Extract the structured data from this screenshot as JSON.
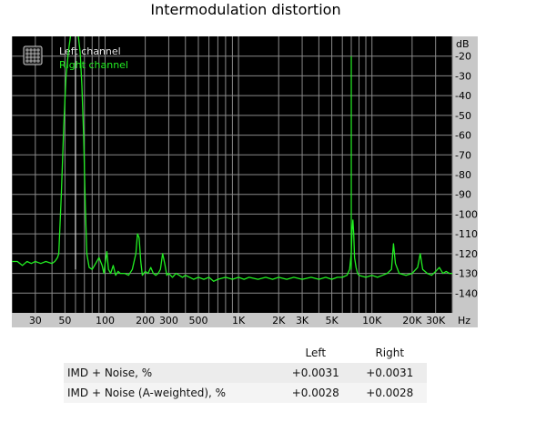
{
  "title": "Intermodulation distortion",
  "chart_data": {
    "type": "line",
    "x_scale": "log",
    "xlim": [
      20,
      40000
    ],
    "ylim": [
      -150,
      -10
    ],
    "y_unit": "dB",
    "x_unit": "Hz",
    "grid": true,
    "legend_position": "top-left",
    "x_ticks": [
      {
        "v": 30,
        "label": "30"
      },
      {
        "v": 50,
        "label": "50"
      },
      {
        "v": 100,
        "label": "100"
      },
      {
        "v": 200,
        "label": "200"
      },
      {
        "v": 300,
        "label": "300"
      },
      {
        "v": 500,
        "label": "500"
      },
      {
        "v": 1000,
        "label": "1K"
      },
      {
        "v": 2000,
        "label": "2K"
      },
      {
        "v": 3000,
        "label": "3K"
      },
      {
        "v": 5000,
        "label": "5K"
      },
      {
        "v": 10000,
        "label": "10K"
      },
      {
        "v": 20000,
        "label": "20K"
      },
      {
        "v": 30000,
        "label": "30K"
      }
    ],
    "y_ticks": [
      {
        "v": -20,
        "label": "-20"
      },
      {
        "v": -30,
        "label": "-30"
      },
      {
        "v": -40,
        "label": "-40"
      },
      {
        "v": -50,
        "label": "-50"
      },
      {
        "v": -60,
        "label": "-60"
      },
      {
        "v": -70,
        "label": "-70"
      },
      {
        "v": -80,
        "label": "-80"
      },
      {
        "v": -90,
        "label": "-90"
      },
      {
        "v": -100,
        "label": "-100"
      },
      {
        "v": -110,
        "label": "-110"
      },
      {
        "v": -120,
        "label": "-120"
      },
      {
        "v": -130,
        "label": "-130"
      },
      {
        "v": -140,
        "label": "-140"
      }
    ],
    "series": [
      {
        "name": "Left channel",
        "color": "#e6e6e6",
        "values": []
      },
      {
        "name": "Right channel",
        "color": "#22ee22",
        "values": [
          [
            20,
            -124
          ],
          [
            22,
            -124
          ],
          [
            24,
            -126
          ],
          [
            26,
            -124
          ],
          [
            28,
            -125
          ],
          [
            30,
            -124
          ],
          [
            33,
            -125
          ],
          [
            36,
            -124
          ],
          [
            40,
            -125
          ],
          [
            42,
            -124
          ],
          [
            44,
            -122
          ],
          [
            45,
            -120
          ],
          [
            47,
            -90
          ],
          [
            49,
            -55
          ],
          [
            51,
            -30
          ],
          [
            53,
            -18
          ],
          [
            55,
            -10
          ],
          [
            57,
            -8
          ],
          [
            59,
            -7
          ],
          [
            61,
            -8
          ],
          [
            63,
            -10
          ],
          [
            65,
            -18
          ],
          [
            67,
            -35
          ],
          [
            69,
            -60
          ],
          [
            71,
            -95
          ],
          [
            73,
            -120
          ],
          [
            76,
            -127
          ],
          [
            80,
            -128
          ],
          [
            85,
            -125
          ],
          [
            90,
            -122
          ],
          [
            95,
            -126
          ],
          [
            98,
            -130
          ],
          [
            100,
            -125
          ],
          [
            103,
            -119
          ],
          [
            106,
            -128
          ],
          [
            110,
            -130
          ],
          [
            115,
            -126
          ],
          [
            120,
            -131
          ],
          [
            125,
            -129
          ],
          [
            130,
            -130
          ],
          [
            140,
            -130
          ],
          [
            150,
            -131
          ],
          [
            160,
            -128
          ],
          [
            170,
            -120
          ],
          [
            175,
            -110
          ],
          [
            180,
            -112
          ],
          [
            185,
            -124
          ],
          [
            190,
            -131
          ],
          [
            200,
            -129
          ],
          [
            210,
            -130
          ],
          [
            220,
            -127
          ],
          [
            230,
            -130
          ],
          [
            240,
            -131
          ],
          [
            250,
            -130
          ],
          [
            260,
            -128
          ],
          [
            270,
            -120
          ],
          [
            280,
            -125
          ],
          [
            290,
            -131
          ],
          [
            300,
            -130
          ],
          [
            320,
            -132
          ],
          [
            340,
            -130
          ],
          [
            360,
            -131
          ],
          [
            380,
            -132
          ],
          [
            400,
            -131
          ],
          [
            430,
            -132
          ],
          [
            460,
            -133
          ],
          [
            500,
            -132
          ],
          [
            550,
            -133
          ],
          [
            600,
            -132
          ],
          [
            650,
            -134
          ],
          [
            700,
            -133
          ],
          [
            800,
            -132
          ],
          [
            900,
            -133
          ],
          [
            1000,
            -132
          ],
          [
            1100,
            -133
          ],
          [
            1200,
            -132
          ],
          [
            1400,
            -133
          ],
          [
            1600,
            -132
          ],
          [
            1800,
            -133
          ],
          [
            2000,
            -132
          ],
          [
            2300,
            -133
          ],
          [
            2600,
            -132
          ],
          [
            3000,
            -133
          ],
          [
            3500,
            -132
          ],
          [
            4000,
            -133
          ],
          [
            4500,
            -132
          ],
          [
            5000,
            -133
          ],
          [
            5500,
            -132
          ],
          [
            6000,
            -132
          ],
          [
            6500,
            -131
          ],
          [
            6800,
            -128
          ],
          [
            7000,
            -120
          ],
          [
            7100,
            -108
          ],
          [
            7200,
            -103
          ],
          [
            7300,
            -110
          ],
          [
            7400,
            -122
          ],
          [
            7600,
            -127
          ],
          [
            7800,
            -130
          ],
          [
            8000,
            -131
          ],
          [
            9000,
            -132
          ],
          [
            10000,
            -131
          ],
          [
            11000,
            -132
          ],
          [
            12000,
            -131
          ],
          [
            13000,
            -130
          ],
          [
            14000,
            -128
          ],
          [
            14500,
            -115
          ],
          [
            15000,
            -125
          ],
          [
            16000,
            -130
          ],
          [
            18000,
            -131
          ],
          [
            20000,
            -130
          ],
          [
            22000,
            -127
          ],
          [
            23000,
            -120
          ],
          [
            24000,
            -128
          ],
          [
            26000,
            -130
          ],
          [
            28000,
            -131
          ],
          [
            30000,
            -129
          ],
          [
            32000,
            -127
          ],
          [
            34000,
            -130
          ],
          [
            36000,
            -129
          ],
          [
            38000,
            -130
          ],
          [
            40000,
            -130
          ]
        ]
      }
    ],
    "spikes": [
      {
        "x": 60,
        "y": -8,
        "color": "#d8d8d8"
      },
      {
        "x": 7000,
        "y": -20,
        "color": "#22ee22"
      }
    ]
  },
  "table": {
    "header": [
      "",
      "Left",
      "Right"
    ],
    "rows": [
      [
        "IMD + Noise, %",
        "+0.0031",
        "+0.0031"
      ],
      [
        "IMD + Noise (A-weighted), %",
        "+0.0028",
        "+0.0028"
      ]
    ]
  }
}
